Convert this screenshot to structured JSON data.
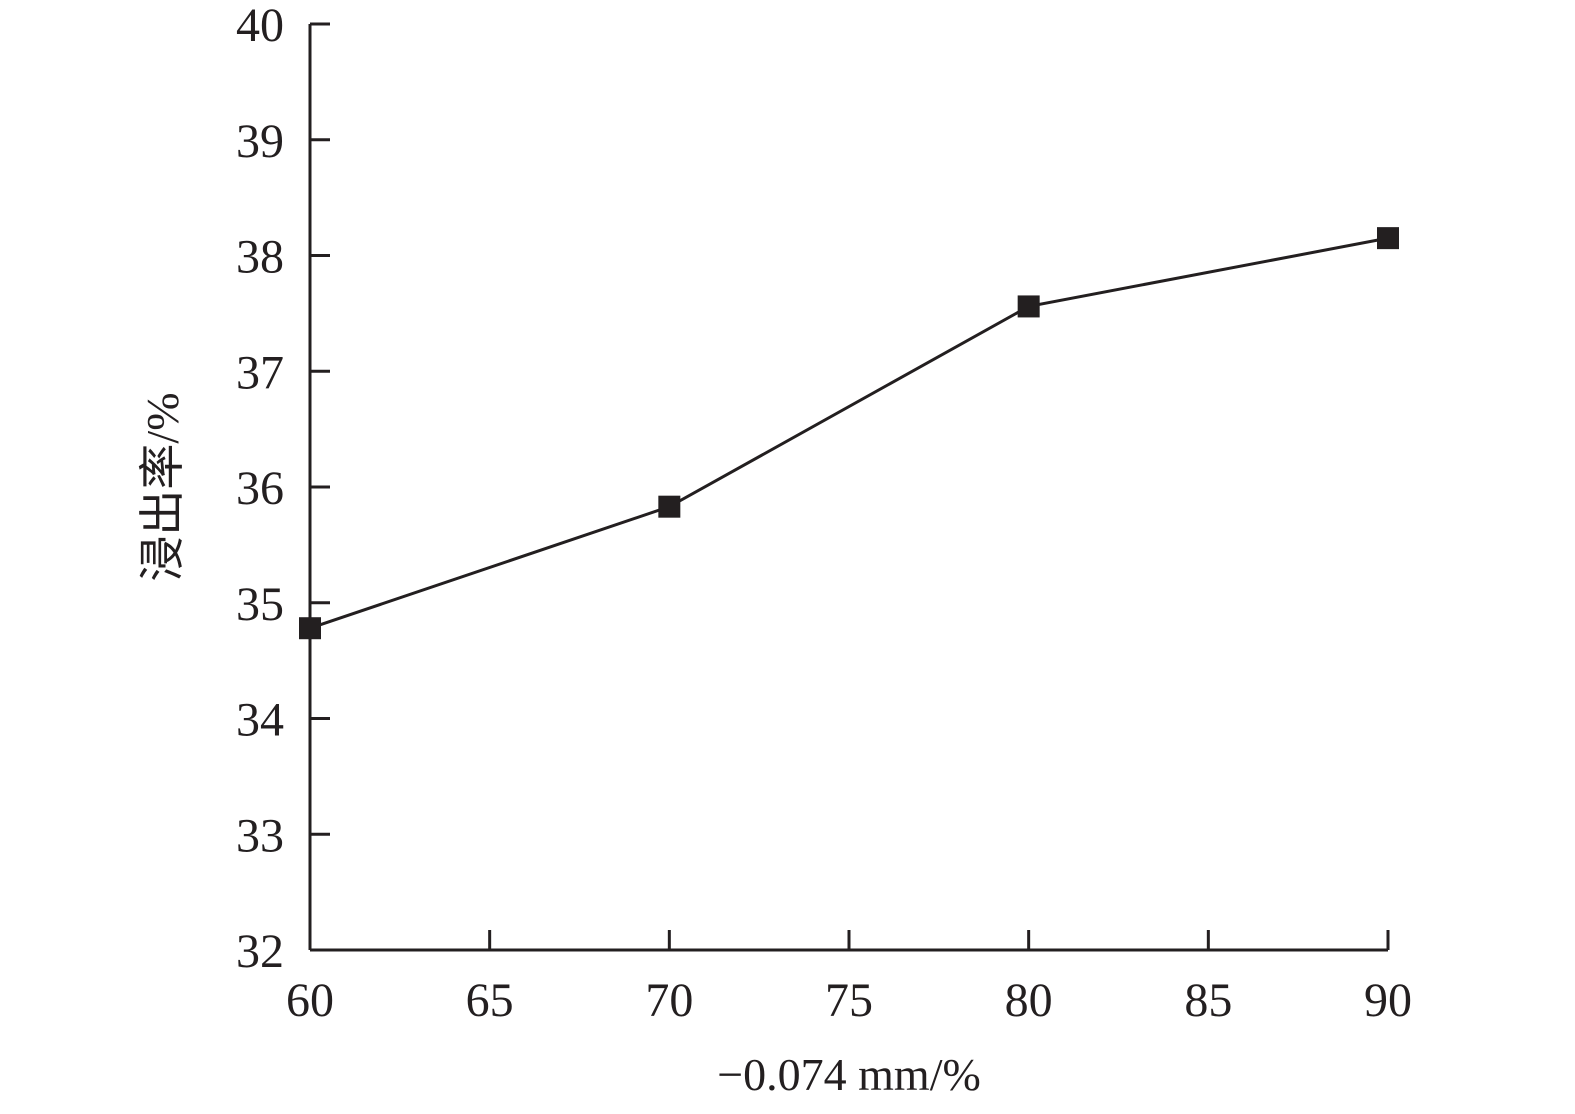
{
  "chart_data": {
    "type": "line",
    "title": "",
    "xlabel": "−0.074 mm/%",
    "ylabel": "浸出率/%",
    "xlim": [
      60,
      90
    ],
    "ylim": [
      32,
      40
    ],
    "xticks": [
      60,
      65,
      70,
      75,
      80,
      85,
      90
    ],
    "yticks": [
      32,
      33,
      34,
      35,
      36,
      37,
      38,
      39,
      40
    ],
    "grid": false,
    "legend": "none",
    "marker": "square",
    "color": "#231f20",
    "series": [
      {
        "x": [
          60,
          70,
          80,
          90
        ],
        "y": [
          34.78,
          35.83,
          37.56,
          38.15
        ]
      }
    ]
  }
}
